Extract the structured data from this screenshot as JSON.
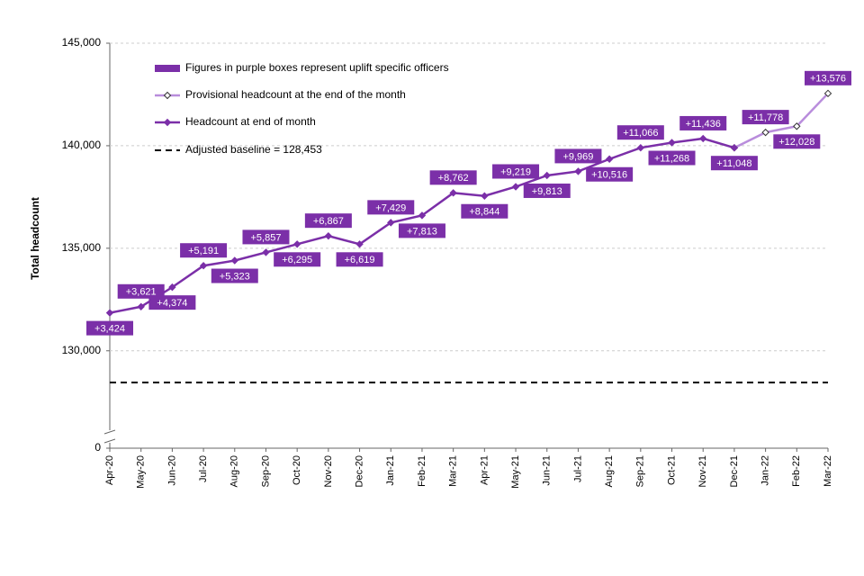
{
  "chart_data": {
    "type": "line",
    "y_label": "Total headcount",
    "categories": [
      "Apr-20",
      "May-20",
      "Jun-20",
      "Jul-20",
      "Aug-20",
      "Sep-20",
      "Oct-20",
      "Nov-20",
      "Dec-20",
      "Jan-21",
      "Feb-21",
      "Mar-21",
      "Apr-21",
      "May-21",
      "Jun-21",
      "Jul-21",
      "Aug-21",
      "Sep-21",
      "Oct-21",
      "Nov-21",
      "Dec-21",
      "Jan-22",
      "Feb-22",
      "Mar-22"
    ],
    "series": [
      {
        "name": "Provisional headcount at the end of the month",
        "color": "#b98ddc",
        "marker_fill": "#ffffff",
        "values": [
          null,
          null,
          null,
          null,
          null,
          null,
          null,
          null,
          null,
          null,
          null,
          null,
          null,
          null,
          null,
          null,
          null,
          null,
          null,
          null,
          139900,
          140650,
          140950,
          142550
        ]
      },
      {
        "name": "Headcount at end of month",
        "color": "#7b2fa8",
        "marker_fill": "#7b2fa8",
        "values": [
          131850,
          132150,
          133100,
          134150,
          134400,
          134800,
          135200,
          135600,
          135200,
          136250,
          136600,
          137700,
          137550,
          138000,
          138550,
          138750,
          139350,
          139900,
          140150,
          140350,
          139900,
          null,
          null,
          null
        ]
      }
    ],
    "uplift_legend": "Figures in purple boxes represent uplift specific officers",
    "uplift_color": "#7b2fa8",
    "annotations": [
      "+3,424",
      "+3,621",
      "+4,374",
      "+5,191",
      "+5,323",
      "+5,857",
      "+6,295",
      "+6,867",
      "+6,619",
      "+7,429",
      "+7,813",
      "+8,762",
      "+8,844",
      "+9,219",
      "+9,813",
      "+9,969",
      "+10,516",
      "+11,066",
      "+11,268",
      "+11,436",
      "+11,048",
      "+11,778",
      "+12,028",
      "+13,576"
    ],
    "baseline": 128453,
    "baseline_label": "Adjusted baseline = 128,453",
    "ylim": [
      125250,
      145000
    ],
    "axis_break": true,
    "yticks": [
      0,
      {
        "value": 130000,
        "label": "130,000"
      },
      {
        "value": 135000,
        "label": "135,000"
      },
      {
        "value": 140000,
        "label": "140,000"
      },
      {
        "value": 145000,
        "label": "145,000"
      }
    ],
    "grid": true
  }
}
